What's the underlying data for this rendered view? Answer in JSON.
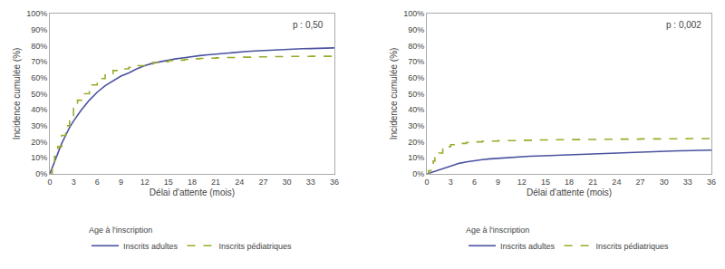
{
  "chart_data": [
    {
      "type": "line",
      "annotation": "p : 0,50",
      "x_label": "Délai d'attente (mois)",
      "y_label": "Incidence cumulée (%)",
      "legend_title": "Age à l'inscription",
      "legend": "bottom",
      "grid": false,
      "xlim": [
        0,
        36
      ],
      "ylim": [
        0,
        1.0
      ],
      "xticks": [
        0,
        3,
        6,
        9,
        12,
        15,
        18,
        21,
        24,
        27,
        30,
        33,
        36
      ],
      "yticks": [
        {
          "value": 0,
          "label": "0%"
        },
        {
          "value": 0.1,
          "label": "10%"
        },
        {
          "value": 0.2,
          "label": "20%"
        },
        {
          "value": 0.3,
          "label": "30%"
        },
        {
          "value": 0.4,
          "label": "40%"
        },
        {
          "value": 0.5,
          "label": "50%"
        },
        {
          "value": 0.6,
          "label": "60%"
        },
        {
          "value": 0.7,
          "label": "70%"
        },
        {
          "value": 0.8,
          "label": "80%"
        },
        {
          "value": 0.9,
          "label": "90%"
        },
        {
          "value": 1.0,
          "label": "100%"
        }
      ],
      "series": [
        {
          "name": "Inscrits adultes",
          "type": "line",
          "color": "#4a52a0",
          "line_style": "solid",
          "x": [
            0,
            0.3,
            0.7,
            1,
            1.5,
            2,
            2.5,
            3,
            4,
            5,
            6,
            7,
            8,
            9,
            10,
            11,
            12,
            13,
            14,
            15,
            16,
            17,
            18,
            19,
            20,
            21,
            22,
            23,
            24,
            25,
            26,
            27,
            28,
            29,
            30,
            31,
            32,
            33,
            34,
            35,
            36
          ],
          "values": [
            0,
            0.04,
            0.09,
            0.13,
            0.19,
            0.24,
            0.29,
            0.33,
            0.4,
            0.46,
            0.51,
            0.55,
            0.58,
            0.61,
            0.63,
            0.655,
            0.675,
            0.69,
            0.7,
            0.71,
            0.718,
            0.725,
            0.733,
            0.738,
            0.743,
            0.748,
            0.752,
            0.757,
            0.761,
            0.764,
            0.767,
            0.77,
            0.773,
            0.775,
            0.777,
            0.779,
            0.781,
            0.782,
            0.784,
            0.785,
            0.786
          ]
        },
        {
          "name": "Inscrits pédiatriques",
          "type": "step",
          "color": "#9aaa2a",
          "line_style": "dashed",
          "x": [
            0,
            0.3,
            0.6,
            1,
            1.5,
            2,
            2.5,
            3,
            3.5,
            4,
            5,
            6,
            7,
            8,
            9,
            10,
            11,
            12,
            13,
            14,
            15,
            16,
            17,
            18,
            19,
            20,
            21,
            22,
            24,
            26,
            28,
            30,
            33,
            36
          ],
          "values": [
            0,
            0.05,
            0.11,
            0.17,
            0.24,
            0.3,
            0.36,
            0.41,
            0.46,
            0.5,
            0.555,
            0.595,
            0.625,
            0.645,
            0.655,
            0.665,
            0.675,
            0.685,
            0.695,
            0.7,
            0.706,
            0.71,
            0.714,
            0.718,
            0.72,
            0.722,
            0.724,
            0.726,
            0.728,
            0.73,
            0.732,
            0.733,
            0.734,
            0.735
          ]
        }
      ]
    },
    {
      "type": "line",
      "annotation": "p : 0,002",
      "x_label": "Délai d'attente (mois)",
      "y_label": "Incidence cumulée (%)",
      "legend_title": "Age à l'inscription",
      "legend": "bottom",
      "grid": false,
      "xlim": [
        0,
        36
      ],
      "ylim": [
        0,
        1.0
      ],
      "xticks": [
        0,
        3,
        6,
        9,
        12,
        15,
        18,
        21,
        24,
        27,
        30,
        33,
        36
      ],
      "yticks": [
        {
          "value": 0,
          "label": "0%"
        },
        {
          "value": 0.1,
          "label": "10%"
        },
        {
          "value": 0.2,
          "label": "20%"
        },
        {
          "value": 0.3,
          "label": "30%"
        },
        {
          "value": 0.4,
          "label": "40%"
        },
        {
          "value": 0.5,
          "label": "50%"
        },
        {
          "value": 0.6,
          "label": "60%"
        },
        {
          "value": 0.7,
          "label": "70%"
        },
        {
          "value": 0.8,
          "label": "80%"
        },
        {
          "value": 0.9,
          "label": "90%"
        },
        {
          "value": 1.0,
          "label": "100%"
        }
      ],
      "series": [
        {
          "name": "Inscrits adultes",
          "type": "line",
          "color": "#4a52a0",
          "line_style": "solid",
          "x": [
            0,
            0.3,
            0.7,
            1,
            1.5,
            2,
            2.5,
            3,
            4,
            5,
            6,
            7,
            8,
            9,
            10,
            11,
            12,
            13,
            14,
            15,
            16,
            17,
            18,
            19,
            20,
            21,
            22,
            23,
            24,
            25,
            26,
            27,
            28,
            29,
            30,
            31,
            32,
            33,
            34,
            35,
            36
          ],
          "values": [
            0,
            0.005,
            0.012,
            0.018,
            0.027,
            0.036,
            0.044,
            0.052,
            0.065,
            0.075,
            0.083,
            0.089,
            0.094,
            0.098,
            0.102,
            0.105,
            0.108,
            0.11,
            0.112,
            0.114,
            0.116,
            0.118,
            0.12,
            0.122,
            0.124,
            0.126,
            0.128,
            0.13,
            0.132,
            0.134,
            0.136,
            0.138,
            0.14,
            0.141,
            0.142,
            0.143,
            0.144,
            0.145,
            0.146,
            0.147,
            0.148
          ]
        },
        {
          "name": "Inscrits pédiatriques",
          "type": "step",
          "color": "#9aaa2a",
          "line_style": "dashed",
          "x": [
            0,
            0.2,
            0.5,
            0.8,
            1.0,
            1.5,
            2,
            2.5,
            3,
            4,
            5,
            6,
            7,
            8,
            9,
            10,
            12,
            14,
            16,
            18,
            20,
            22,
            24,
            27,
            30,
            33,
            36
          ],
          "values": [
            0,
            0.02,
            0.05,
            0.08,
            0.1,
            0.13,
            0.155,
            0.17,
            0.182,
            0.19,
            0.196,
            0.2,
            0.203,
            0.205,
            0.207,
            0.208,
            0.21,
            0.212,
            0.213,
            0.214,
            0.215,
            0.216,
            0.217,
            0.218,
            0.219,
            0.22,
            0.221
          ]
        }
      ]
    }
  ]
}
